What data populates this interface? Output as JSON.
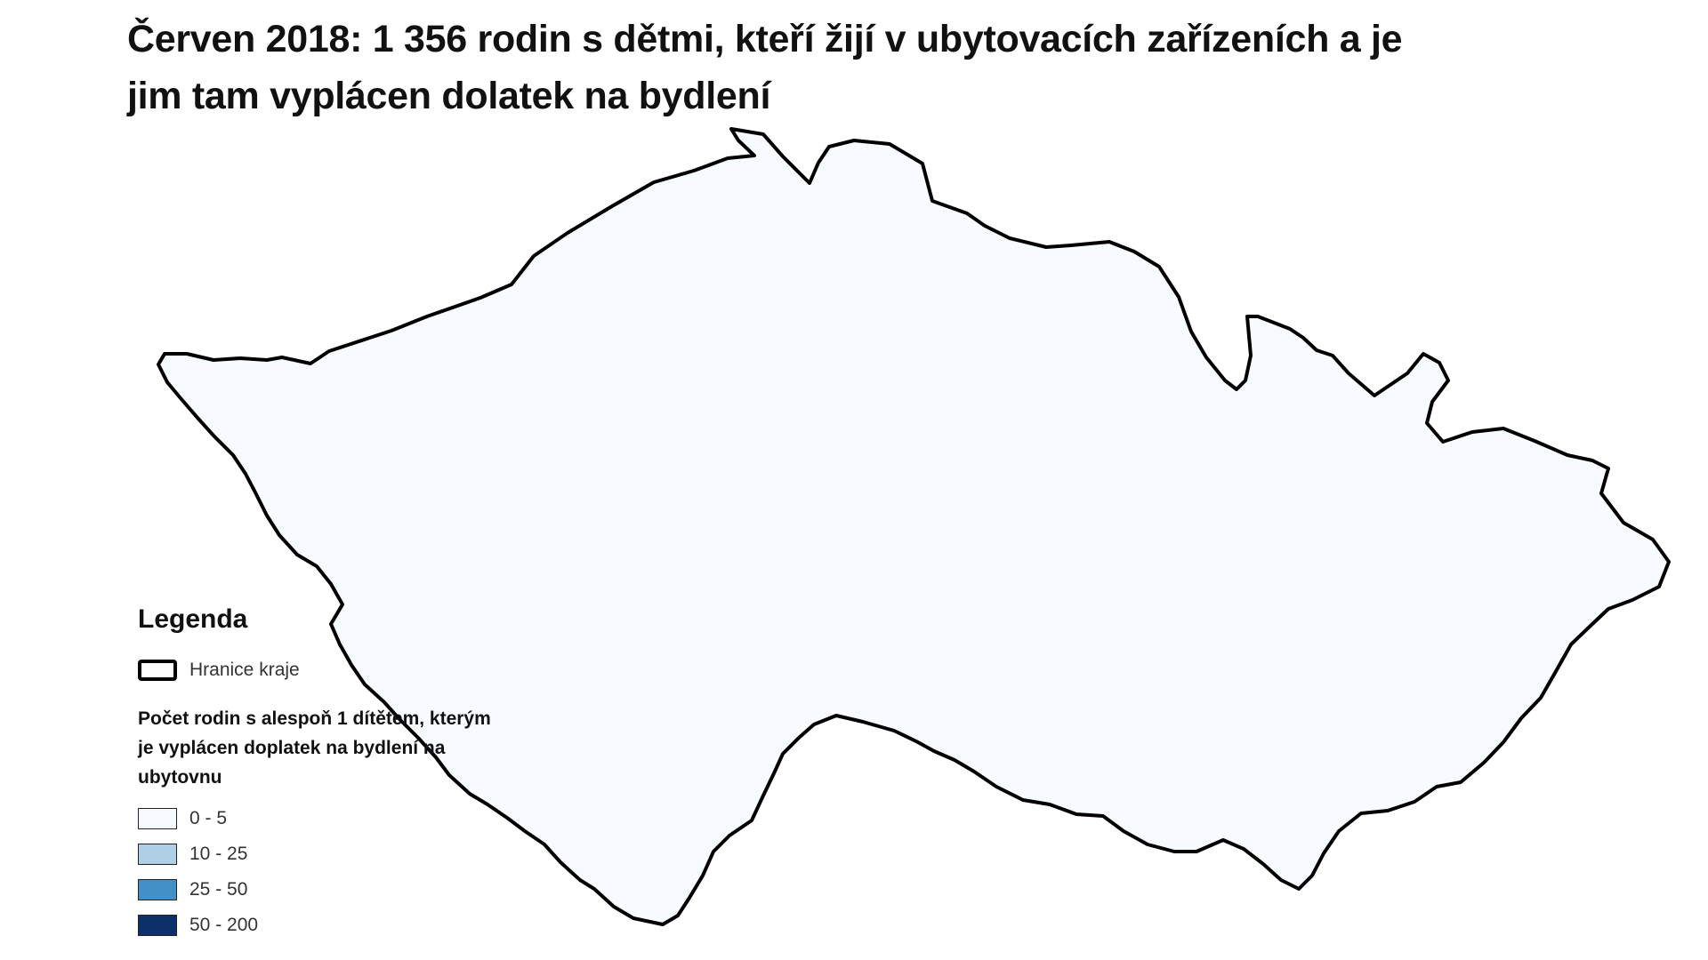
{
  "title": "Červen 2018: 1 356 rodin s dětmi, kteří žijí v ubytovacích zařízeních a je jim tam vyplácen dolatek na bydlení",
  "legend": {
    "heading": "Legenda",
    "boundary_label": "Hranice kraje",
    "subtitle": "Počet rodin s alespoň 1 dítětem, kterým je vyplácen doplatek na bydlení na ubytovnu",
    "classes": [
      {
        "label": "0 - 5",
        "color": "#f7fbff"
      },
      {
        "label": "10 - 25",
        "color": "#aecfe6"
      },
      {
        "label": "25 - 50",
        "color": "#4390c8"
      },
      {
        "label": "50 - 200",
        "color": "#0d2f6a"
      }
    ]
  },
  "colors": {
    "boundary": "#000000",
    "district_border": "#222222"
  }
}
